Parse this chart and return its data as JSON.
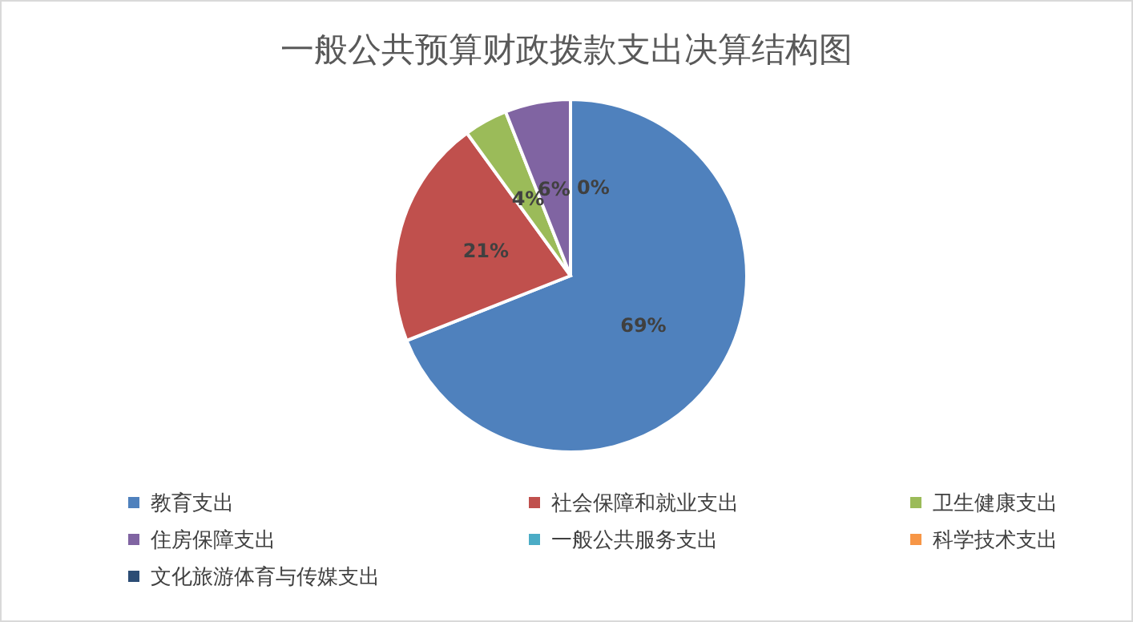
{
  "chart_data": {
    "type": "pie",
    "title": "一般公共预算财政拨款支出决算结构图",
    "categories": [
      "教育支出",
      "社会保障和就业支出",
      "卫生健康支出",
      "住房保障支出",
      "一般公共服务支出",
      "科学技术支出",
      "文化旅游体育与传媒支出"
    ],
    "values": [
      69,
      21,
      4,
      6,
      0,
      0,
      0
    ],
    "colors": [
      "#4f81bd",
      "#c0504d",
      "#9bbb59",
      "#8064a2",
      "#4bacc6",
      "#f79646",
      "#2c4d75"
    ],
    "value_labels": [
      "69%",
      "21%",
      "4%",
      "6%",
      "0%",
      null,
      null
    ],
    "legend": "bottom"
  }
}
